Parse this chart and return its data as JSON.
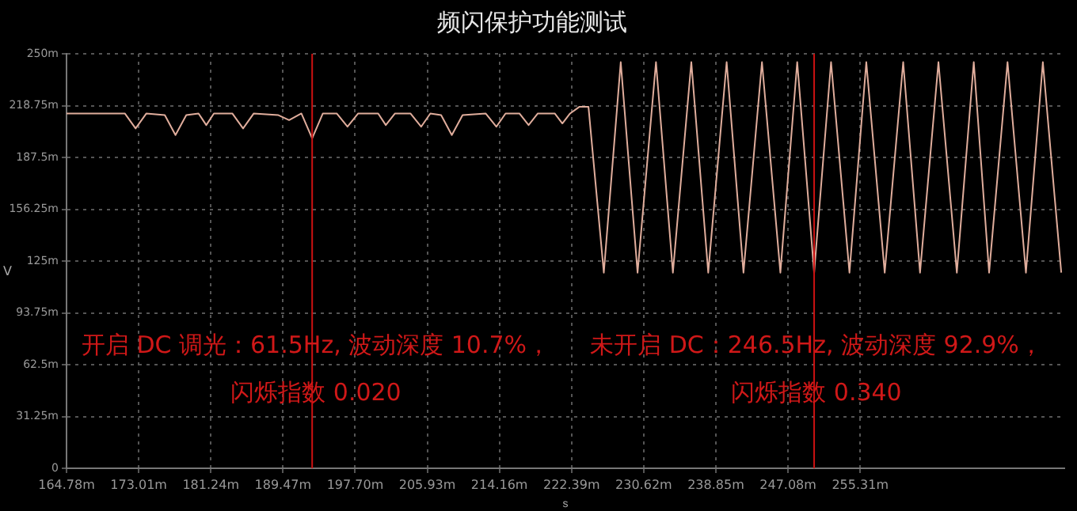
{
  "chart_data": {
    "type": "line",
    "title": "频闪保护功能测试",
    "xlabel": "s",
    "ylabel": "V",
    "xlim": [
      164.78,
      278.6
    ],
    "ylim": [
      0,
      250
    ],
    "xticks": [
      {
        "value": 164.78,
        "label": "164.78m"
      },
      {
        "value": 173.01,
        "label": "173.01m"
      },
      {
        "value": 181.24,
        "label": "181.24m"
      },
      {
        "value": 189.47,
        "label": "189.47m"
      },
      {
        "value": 197.7,
        "label": "197.70m"
      },
      {
        "value": 205.93,
        "label": "205.93m"
      },
      {
        "value": 214.16,
        "label": "214.16m"
      },
      {
        "value": 222.39,
        "label": "222.39m"
      },
      {
        "value": 230.62,
        "label": "230.62m"
      },
      {
        "value": 238.85,
        "label": "238.85m"
      },
      {
        "value": 247.08,
        "label": "247.08m"
      },
      {
        "value": 255.31,
        "label": "255.31m"
      }
    ],
    "yticks": [
      {
        "value": 0,
        "label": "0"
      },
      {
        "value": 31.25,
        "label": "31.25m"
      },
      {
        "value": 62.5,
        "label": "62.5m"
      },
      {
        "value": 93.75,
        "label": "93.75m"
      },
      {
        "value": 125,
        "label": "125m"
      },
      {
        "value": 156.25,
        "label": "156.25m"
      },
      {
        "value": 187.5,
        "label": "187.5m"
      },
      {
        "value": 218.75,
        "label": "218.75m"
      },
      {
        "value": 250,
        "label": "250m"
      }
    ],
    "grid": true,
    "marker": "none",
    "line_style": "solid",
    "series": [
      {
        "color": "#e0ad9c",
        "x": [
          164.78,
          171.43,
          172.66,
          173.89,
          175.99,
          177.21,
          178.44,
          179.84,
          180.72,
          181.59,
          183.69,
          184.92,
          186.14,
          188.95,
          190.17,
          191.57,
          192.8,
          194.02,
          195.6,
          196.83,
          198.05,
          200.33,
          201.2,
          202.25,
          204.01,
          205.23,
          206.28,
          207.51,
          208.73,
          209.96,
          212.59,
          213.81,
          214.86,
          216.44,
          217.49,
          218.54,
          220.47,
          221.34,
          222.22,
          223.27,
          224.32,
          226.07,
          228.0,
          229.92,
          232.02,
          233.95,
          236.05,
          237.98,
          240.08,
          242.0,
          244.11,
          246.21,
          248.13,
          250.06,
          251.99,
          254.09,
          256.01,
          258.11,
          260.22,
          262.14,
          264.24,
          266.34,
          268.27,
          270.02,
          272.12,
          274.22,
          276.15,
          278.25
        ],
        "values": [
          214,
          214,
          205,
          214,
          213,
          201,
          213,
          214,
          207,
          214,
          214,
          205,
          214,
          213,
          210,
          214,
          199,
          214,
          214,
          206,
          214,
          214,
          207,
          214,
          214,
          206,
          214,
          213,
          201,
          213,
          214,
          206,
          214,
          214,
          207,
          214,
          214,
          208,
          214,
          218,
          218,
          118,
          245,
          118,
          245,
          118,
          245,
          118,
          245,
          118,
          245,
          118,
          245,
          118,
          245,
          118,
          245,
          118,
          245,
          118,
          245,
          118,
          245,
          118,
          245,
          118,
          245,
          118
        ]
      }
    ],
    "ref_lines": [
      {
        "axis": "x",
        "value": 192.8,
        "color": "#cc1111"
      },
      {
        "axis": "x",
        "value": 250.06,
        "color": "#cc1111"
      }
    ],
    "annotations": [
      "开启 DC 调光：61.5Hz, 波动深度 10.7%，",
      "闪烁指数 0.020",
      "未开启 DC：246.5Hz, 波动深度 92.9%，",
      "闪烁指数 0.340"
    ]
  }
}
